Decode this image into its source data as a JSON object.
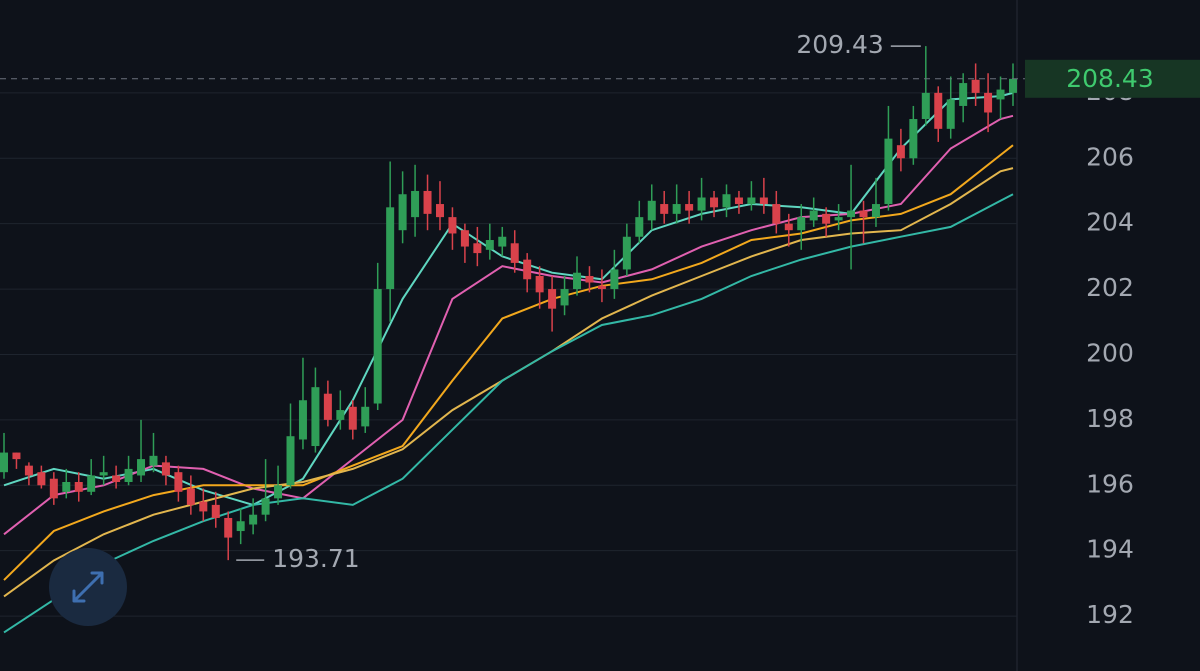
{
  "chart_data": {
    "type": "candlestick",
    "up_color": "#2f9e57",
    "down_color": "#d9424b",
    "ylim": [
      190.32,
      210.84
    ],
    "yticks": [
      192,
      194,
      196,
      198,
      200,
      202,
      204,
      206,
      208
    ],
    "grid": true,
    "candles": {
      "open": [
        196.4,
        197.0,
        196.6,
        196.4,
        196.2,
        195.8,
        196.1,
        195.8,
        196.3,
        196.3,
        196.1,
        196.3,
        196.6,
        196.7,
        196.4,
        195.9,
        195.5,
        195.4,
        195.0,
        194.6,
        194.8,
        195.1,
        195.6,
        196.0,
        197.4,
        197.2,
        198.8,
        198.0,
        198.4,
        197.8,
        198.5,
        202.0,
        203.8,
        204.2,
        205.0,
        204.6,
        204.2,
        203.8,
        203.4,
        203.2,
        203.3,
        203.4,
        202.9,
        202.4,
        202.0,
        201.5,
        202.0,
        202.4,
        202.1,
        202.0,
        202.6,
        203.6,
        204.1,
        204.6,
        204.3,
        204.6,
        204.4,
        204.8,
        204.5,
        204.8,
        204.6,
        204.8,
        204.6,
        204.0,
        203.8,
        204.1,
        204.3,
        204.1,
        204.2,
        204.4,
        204.2,
        204.6,
        206.4,
        206.0,
        207.2,
        208.0,
        206.9,
        207.6,
        208.4,
        208.0,
        207.8,
        208.0
      ],
      "high": [
        197.6,
        197.0,
        196.7,
        196.6,
        196.4,
        196.5,
        196.4,
        196.8,
        196.9,
        196.6,
        196.9,
        198.0,
        197.6,
        196.9,
        196.6,
        196.3,
        195.9,
        195.8,
        195.2,
        195.3,
        195.6,
        196.8,
        196.6,
        198.5,
        199.9,
        199.6,
        199.2,
        198.9,
        198.6,
        199.0,
        202.8,
        205.9,
        205.6,
        205.8,
        205.5,
        205.3,
        204.5,
        204.0,
        203.9,
        204.0,
        203.9,
        203.8,
        203.1,
        202.7,
        202.4,
        202.4,
        203.0,
        202.7,
        202.6,
        203.2,
        204.0,
        204.7,
        205.2,
        205.0,
        205.2,
        205.0,
        205.4,
        205.0,
        205.2,
        205.0,
        205.3,
        205.4,
        205.0,
        204.3,
        204.6,
        204.8,
        204.5,
        204.6,
        205.8,
        204.7,
        205.4,
        207.6,
        206.9,
        207.6,
        209.43,
        208.2,
        208.5,
        208.6,
        208.9,
        208.6,
        208.5,
        208.9
      ],
      "low": [
        196.2,
        196.5,
        196.0,
        195.9,
        195.4,
        195.6,
        195.5,
        195.7,
        196.0,
        195.9,
        196.0,
        196.1,
        196.4,
        196.0,
        195.5,
        195.1,
        194.9,
        194.7,
        193.71,
        194.2,
        194.5,
        194.9,
        195.4,
        195.9,
        197.1,
        197.0,
        197.8,
        197.7,
        197.4,
        197.6,
        198.3,
        201.0,
        203.4,
        203.6,
        203.8,
        203.8,
        203.2,
        202.8,
        202.7,
        202.9,
        203.0,
        202.5,
        201.9,
        201.4,
        200.7,
        201.2,
        201.8,
        201.9,
        201.6,
        201.7,
        202.4,
        203.4,
        203.8,
        204.0,
        204.0,
        204.0,
        204.1,
        204.2,
        204.2,
        204.3,
        204.4,
        204.3,
        203.7,
        203.3,
        203.2,
        203.9,
        203.6,
        203.8,
        202.6,
        203.4,
        203.9,
        204.4,
        205.6,
        205.8,
        207.0,
        206.5,
        206.6,
        207.1,
        207.6,
        206.8,
        207.2,
        207.6
      ],
      "close": [
        197.0,
        196.8,
        196.3,
        196.0,
        195.6,
        196.1,
        195.8,
        196.3,
        196.4,
        196.1,
        196.5,
        196.8,
        196.9,
        196.3,
        195.8,
        195.4,
        195.2,
        195.0,
        194.4,
        194.9,
        195.1,
        195.6,
        196.0,
        197.5,
        198.6,
        199.0,
        198.0,
        198.3,
        197.7,
        198.4,
        202.0,
        204.5,
        204.9,
        205.0,
        204.3,
        204.2,
        203.7,
        203.3,
        203.1,
        203.5,
        203.6,
        202.8,
        202.3,
        201.9,
        201.4,
        202.0,
        202.5,
        202.2,
        202.0,
        202.6,
        203.6,
        204.2,
        204.7,
        204.3,
        204.6,
        204.4,
        204.8,
        204.5,
        204.9,
        204.6,
        204.8,
        204.6,
        204.0,
        203.8,
        204.2,
        204.4,
        204.0,
        204.2,
        204.4,
        204.2,
        204.6,
        206.6,
        206.0,
        207.2,
        208.0,
        206.9,
        207.8,
        208.3,
        208.0,
        207.4,
        208.1,
        208.43
      ]
    },
    "overlays": {
      "x": [
        0,
        4,
        8,
        12,
        16,
        20,
        24,
        28,
        32,
        36,
        40,
        44,
        48,
        52,
        56,
        60,
        64,
        68,
        72,
        76,
        80,
        81
      ],
      "series": [
        {
          "color": "#5fd6c0",
          "values": [
            196.0,
            196.5,
            196.2,
            196.5,
            195.85,
            195.4,
            196.2,
            198.6,
            201.7,
            204.0,
            203.0,
            202.5,
            202.3,
            203.8,
            204.3,
            204.6,
            204.5,
            204.3,
            206.3,
            207.8,
            207.9,
            208.0
          ]
        },
        {
          "color": "#e060b0",
          "values": [
            194.5,
            195.7,
            196.0,
            196.6,
            196.5,
            195.9,
            195.6,
            196.8,
            198.0,
            201.7,
            202.7,
            202.4,
            202.2,
            202.6,
            203.3,
            203.8,
            204.2,
            204.3,
            204.6,
            206.3,
            207.2,
            207.3
          ]
        },
        {
          "color": "#f2a81d",
          "values": [
            193.1,
            194.6,
            195.2,
            195.7,
            196.0,
            196.0,
            196.0,
            196.6,
            197.2,
            199.2,
            201.1,
            201.7,
            202.1,
            202.3,
            202.8,
            203.5,
            203.7,
            204.1,
            204.3,
            204.9,
            206.1,
            206.4
          ]
        },
        {
          "color": "#e2b64e",
          "values": [
            192.6,
            193.7,
            194.5,
            195.1,
            195.5,
            195.9,
            196.1,
            196.5,
            197.1,
            198.3,
            199.2,
            200.1,
            201.1,
            201.8,
            202.4,
            203.0,
            203.5,
            203.7,
            203.8,
            204.6,
            205.6,
            205.7
          ]
        },
        {
          "color": "#33b8a6",
          "values": [
            191.5,
            192.5,
            193.6,
            194.3,
            194.9,
            195.4,
            195.6,
            195.4,
            196.2,
            197.7,
            199.2,
            200.1,
            200.9,
            201.2,
            201.7,
            202.4,
            202.9,
            203.3,
            203.6,
            203.9,
            204.7,
            204.9
          ]
        }
      ]
    }
  }
}
